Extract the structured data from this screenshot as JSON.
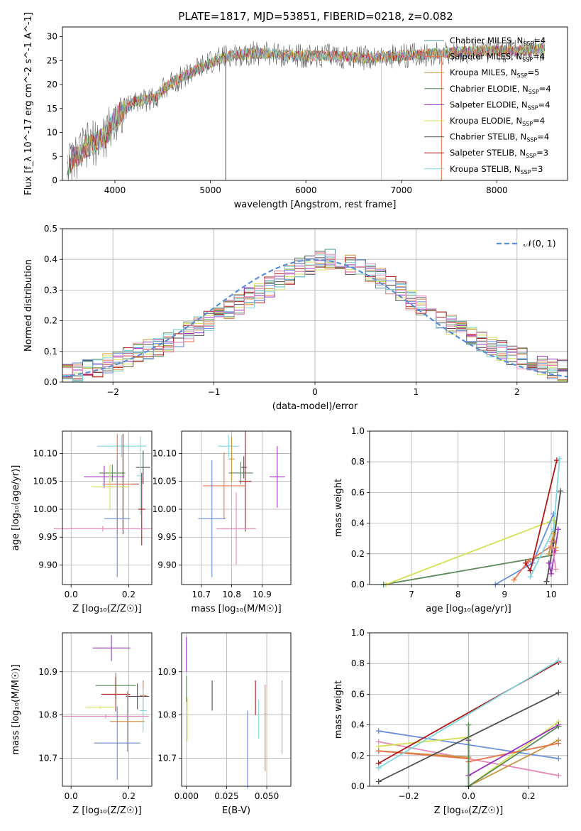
{
  "figure_title": "PLATE=1817, MJD=53851, FIBERID=0218, z=0.082",
  "colors": [
    "#4c8f8f",
    "#e8734a",
    "#c8963c",
    "#5a8a5a",
    "#9b30c0",
    "#d4e050",
    "#505050",
    "#b01818",
    "#7fd8e0",
    "#6a8fdc",
    "#e888b8"
  ],
  "chart_data": [
    {
      "id": "spectrum",
      "type": "line",
      "xlabel": "wavelength [Angstrom, rest frame]",
      "ylabel": "Flux [f_λ 10^-17 erg cm^-2 s^-1 A^-1]",
      "xlim": [
        3450,
        8740
      ],
      "ylim": [
        0,
        32
      ],
      "xticks": [
        "4000",
        "5000",
        "6000",
        "7000",
        "8000"
      ],
      "yticks": [
        "0",
        "5",
        "10",
        "15",
        "20",
        "25",
        "30"
      ],
      "grid": false,
      "legend_position": "top-right",
      "continuum": {
        "x": [
          3500,
          3700,
          3900,
          4000,
          4200,
          4400,
          4600,
          4800,
          5000,
          5200,
          5400,
          5600,
          5800,
          6000,
          6300,
          6600,
          7000,
          7400,
          7800,
          8200,
          8500
        ],
        "y": [
          3,
          7,
          9,
          13,
          16.5,
          17,
          20.5,
          22.5,
          24.5,
          26,
          26.5,
          26.5,
          26,
          26,
          26,
          25.5,
          26,
          26.5,
          27,
          27,
          27.5
        ]
      },
      "series": [
        {
          "name": "Chabrier MILES",
          "n_ssp": "4"
        },
        {
          "name": "Salpeter MILES",
          "n_ssp": "4"
        },
        {
          "name": "Kroupa MILES",
          "n_ssp": "5"
        },
        {
          "name": "Chabrier ELODIE",
          "n_ssp": "4"
        },
        {
          "name": "Salpeter ELODIE",
          "n_ssp": "4"
        },
        {
          "name": "Kroupa ELODIE",
          "n_ssp": "4"
        },
        {
          "name": "Chabrier STELIB",
          "n_ssp": "4"
        },
        {
          "name": "Salpeter STELIB",
          "n_ssp": "3"
        },
        {
          "name": "Kroupa STELIB",
          "n_ssp": "3"
        }
      ]
    },
    {
      "id": "residuals",
      "type": "bar",
      "xlabel": "(data-model)/error",
      "ylabel": "Normed distribution",
      "xlim": [
        -2.5,
        2.5
      ],
      "ylim": [
        0,
        0.5
      ],
      "xticks": [
        "−2",
        "−1",
        "0",
        "1",
        "2"
      ],
      "yticks": [
        "0.0",
        "0.1",
        "0.2",
        "0.3",
        "0.4",
        "0.5"
      ],
      "grid": true,
      "legend": "𝒩(0, 1)",
      "legend_position": "top-right",
      "bin_width": 0.1,
      "base_hist": [
        0.03,
        0.032,
        0.04,
        0.05,
        0.058,
        0.068,
        0.08,
        0.092,
        0.105,
        0.118,
        0.132,
        0.148,
        0.163,
        0.18,
        0.198,
        0.216,
        0.236,
        0.255,
        0.274,
        0.292,
        0.31,
        0.33,
        0.35,
        0.372,
        0.385,
        0.398,
        0.4,
        0.396,
        0.386,
        0.374,
        0.355,
        0.336,
        0.314,
        0.292,
        0.27,
        0.25,
        0.23,
        0.21,
        0.19,
        0.17,
        0.152,
        0.134,
        0.118,
        0.103,
        0.09,
        0.078,
        0.066,
        0.055,
        0.046,
        0.038
      ]
    },
    {
      "id": "age_vs_z",
      "type": "scatter",
      "xlabel": "Z [log₁₀(Z/Z☉)]",
      "ylabel": "age  [log₁₀(age/yr)]",
      "xlim": [
        -0.03,
        0.28
      ],
      "ylim": [
        9.865,
        10.14
      ],
      "xticks": [
        "0.0",
        "0.2"
      ],
      "xtick_values": [
        0,
        0.2
      ],
      "yticks": [
        "9.90",
        "9.95",
        "10.00",
        "10.05",
        "10.10"
      ],
      "ytick_values": [
        9.9,
        9.95,
        10.0,
        10.05,
        10.1
      ],
      "grid": true,
      "points": [
        {
          "x": 0.175,
          "y": 10.113,
          "xerr": 0.085,
          "yerr": 0.02,
          "color": 8
        },
        {
          "x": 0.143,
          "y": 10.065,
          "xerr": 0.045,
          "yerr": 0.015,
          "color": 3
        },
        {
          "x": 0.25,
          "y": 10.075,
          "xerr": 0.025,
          "yerr": 0.03,
          "color": 6
        },
        {
          "x": 0.115,
          "y": 10.058,
          "xerr": 0.07,
          "yerr": 0.02,
          "color": 4
        },
        {
          "x": 0.24,
          "y": 10.06,
          "xerr": 0.012,
          "yerr": 0.07,
          "color": 8
        },
        {
          "x": 0.18,
          "y": 10.045,
          "xerr": 0.055,
          "yerr": 0.09,
          "color": 7
        },
        {
          "x": 0.16,
          "y": 10.045,
          "xerr": 0.05,
          "yerr": 0.09,
          "color": 1
        },
        {
          "x": 0.135,
          "y": 10.04,
          "xerr": 0.065,
          "yerr": 0.04,
          "color": 5
        },
        {
          "x": 0.245,
          "y": 10.0,
          "xerr": 0.012,
          "yerr": 0.065,
          "color": 7
        },
        {
          "x": 0.16,
          "y": 9.983,
          "xerr": 0.045,
          "yerr": 0.105,
          "color": 9
        },
        {
          "x": 0.11,
          "y": 9.965,
          "xerr": 0.17,
          "yerr": 0.005,
          "color": 10
        }
      ]
    },
    {
      "id": "age_vs_mass",
      "type": "scatter",
      "xlabel": "mass [log₁₀(M/M☉)]",
      "ylabel": "",
      "xlim": [
        10.635,
        10.995
      ],
      "ylim": [
        9.865,
        10.14
      ],
      "xticks": [
        "10.7",
        "10.8",
        "10.9"
      ],
      "xtick_values": [
        10.7,
        10.8,
        10.9
      ],
      "yticks": [
        "9.90",
        "9.95",
        "10.00",
        "10.05",
        "10.10"
      ],
      "ytick_values": [
        9.9,
        9.95,
        10.0,
        10.05,
        10.1
      ],
      "grid": true,
      "points": [
        {
          "x": 10.79,
          "y": 10.113,
          "xerr": 0.035,
          "yerr": 0.02,
          "color": 8
        },
        {
          "x": 10.8,
          "y": 10.09,
          "xerr": 0.01,
          "yerr": 0.04,
          "color": 2
        },
        {
          "x": 10.84,
          "y": 10.075,
          "xerr": 0.01,
          "yerr": 0.02,
          "color": 6
        },
        {
          "x": 10.83,
          "y": 10.065,
          "xerr": 0.04,
          "yerr": 0.02,
          "color": 3
        },
        {
          "x": 10.95,
          "y": 10.058,
          "xerr": 0.025,
          "yerr": 0.055,
          "color": 4
        },
        {
          "x": 10.845,
          "y": 10.05,
          "xerr": 0.02,
          "yerr": 0.09,
          "color": 7
        },
        {
          "x": 10.775,
          "y": 10.042,
          "xerr": 0.07,
          "yerr": 0.06,
          "color": 1
        },
        {
          "x": 10.735,
          "y": 9.983,
          "xerr": 0.045,
          "yerr": 0.105,
          "color": 9
        },
        {
          "x": 10.815,
          "y": 9.965,
          "xerr": 0.065,
          "yerr": 0.065,
          "color": 10
        }
      ]
    },
    {
      "id": "weight_vs_age",
      "type": "line",
      "xlabel": "age  [log₁₀(age/yr)]",
      "ylabel": "mass weight",
      "xlim": [
        6.1,
        10.35
      ],
      "ylim": [
        0,
        1.0
      ],
      "xticks": [
        "7",
        "8",
        "9",
        "10"
      ],
      "xtick_values": [
        7,
        8,
        9,
        10
      ],
      "yticks": [
        "0.0",
        "0.2",
        "0.4",
        "0.6",
        "0.8",
        "1.0"
      ],
      "ytick_values": [
        0,
        0.2,
        0.4,
        0.6,
        0.8,
        1.0
      ],
      "grid": true,
      "series": [
        {
          "color": 3,
          "x": [
            6.4,
            10.0,
            10.1
          ],
          "y": [
            0.0,
            0.19,
            0.4
          ]
        },
        {
          "color": 5,
          "x": [
            6.45,
            10.05,
            10.1
          ],
          "y": [
            0.0,
            0.42,
            0.4
          ]
        },
        {
          "color": 9,
          "x": [
            8.8,
            9.6,
            10.05
          ],
          "y": [
            0.0,
            0.14,
            0.46
          ]
        },
        {
          "color": 1,
          "x": [
            9.2,
            9.5,
            10.0,
            10.1
          ],
          "y": [
            0.03,
            0.15,
            0.25,
            0.22
          ]
        },
        {
          "color": 7,
          "x": [
            9.45,
            9.55,
            10.12
          ],
          "y": [
            0.14,
            0.09,
            0.81
          ]
        },
        {
          "color": 8,
          "x": [
            9.55,
            10.05,
            10.18
          ],
          "y": [
            0.05,
            0.36,
            0.82
          ]
        },
        {
          "color": 6,
          "x": [
            9.9,
            10.05,
            10.2
          ],
          "y": [
            0.02,
            0.27,
            0.61
          ]
        },
        {
          "color": 4,
          "x": [
            9.95,
            10.0,
            10.15
          ],
          "y": [
            0.14,
            0.07,
            0.36
          ]
        },
        {
          "color": 10,
          "x": [
            10.0,
            10.05,
            10.1
          ],
          "y": [
            0.28,
            0.2,
            0.1
          ]
        },
        {
          "color": 2,
          "x": [
            9.95,
            10.05,
            10.1
          ],
          "y": [
            0.2,
            0.33,
            0.24
          ]
        }
      ]
    },
    {
      "id": "mass_vs_z",
      "type": "scatter",
      "xlabel": "Z [log₁₀(Z/Z☉)]",
      "ylabel": "mass [log₁₀(M/M☉)]",
      "xlim": [
        -0.03,
        0.28
      ],
      "ylim": [
        10.635,
        10.99
      ],
      "xticks": [
        "0.0",
        "0.2"
      ],
      "xtick_values": [
        0,
        0.2
      ],
      "yticks": [
        "10.7",
        "10.8",
        "10.9"
      ],
      "ytick_values": [
        10.7,
        10.8,
        10.9
      ],
      "grid": true,
      "points": [
        {
          "x": 0.14,
          "y": 10.955,
          "xerr": 0.065,
          "yerr": 0.03,
          "color": 4
        },
        {
          "x": 0.155,
          "y": 10.868,
          "xerr": 0.07,
          "yerr": 0.03,
          "color": 3
        },
        {
          "x": 0.25,
          "y": 10.845,
          "xerr": 0.012,
          "yerr": 0.035,
          "color": 1
        },
        {
          "x": 0.23,
          "y": 10.843,
          "xerr": 0.04,
          "yerr": 0.03,
          "color": 6
        },
        {
          "x": 0.155,
          "y": 10.848,
          "xerr": 0.05,
          "yerr": 0.04,
          "color": 7
        },
        {
          "x": 0.1,
          "y": 10.818,
          "xerr": 0.05,
          "yerr": 0.003,
          "color": 5
        },
        {
          "x": 0.25,
          "y": 10.81,
          "xerr": 0.012,
          "yerr": 0.05,
          "color": 8
        },
        {
          "x": 0.12,
          "y": 10.797,
          "xerr": 0.15,
          "yerr": 0.005,
          "color": 10
        },
        {
          "x": 0.195,
          "y": 10.785,
          "xerr": 0.06,
          "yerr": 0.07,
          "color": 2
        },
        {
          "x": 0.16,
          "y": 10.735,
          "xerr": 0.08,
          "yerr": 0.085,
          "color": 9
        }
      ]
    },
    {
      "id": "mass_vs_ebv",
      "type": "scatter",
      "xlabel": "E(B-V)",
      "ylabel": "",
      "xlim": [
        -0.003,
        0.065
      ],
      "ylim": [
        10.635,
        10.99
      ],
      "xticks": [
        "0.000",
        "0.025",
        "0.050"
      ],
      "xtick_values": [
        0,
        0.025,
        0.05
      ],
      "yticks": [
        "10.7",
        "10.8",
        "10.9"
      ],
      "ytick_values": [
        10.7,
        10.8,
        10.9
      ],
      "grid": true,
      "points": [
        {
          "x": 0.0,
          "y": 10.94,
          "xerr": 0,
          "yerr": 0.04,
          "color": 4
        },
        {
          "x": 0.0005,
          "y": 10.79,
          "xerr": 0,
          "yerr": 0.05,
          "color": 5
        },
        {
          "x": 0.0,
          "y": 10.86,
          "xerr": 0,
          "yerr": 0.03,
          "color": 3
        },
        {
          "x": 0.016,
          "y": 10.845,
          "xerr": 0,
          "yerr": 0.035,
          "color": 6
        },
        {
          "x": 0.038,
          "y": 10.72,
          "xerr": 0,
          "yerr": 0.09,
          "color": 9
        },
        {
          "x": 0.043,
          "y": 10.84,
          "xerr": 0,
          "yerr": 0.04,
          "color": 7
        },
        {
          "x": 0.045,
          "y": 10.79,
          "xerr": 0,
          "yerr": 0.045,
          "color": 8
        },
        {
          "x": 0.049,
          "y": 10.77,
          "xerr": 0,
          "yerr": 0.1,
          "color": 1
        },
        {
          "x": 0.0595,
          "y": 10.795,
          "xerr": 0,
          "yerr": 0.085,
          "color": 10
        }
      ]
    },
    {
      "id": "weight_vs_z",
      "type": "line",
      "xlabel": "Z [log₁₀(Z/Z☉)]",
      "ylabel": "mass weight",
      "xlim": [
        -0.33,
        0.33
      ],
      "ylim": [
        0,
        1.0
      ],
      "xticks": [
        "−0.2",
        "0.0",
        "0.2"
      ],
      "xtick_values": [
        -0.2,
        0,
        0.2
      ],
      "yticks": [
        "0.0",
        "0.2",
        "0.4",
        "0.6",
        "0.8",
        "1.0"
      ],
      "ytick_values": [
        0,
        0.2,
        0.4,
        0.6,
        0.8,
        1.0
      ],
      "grid": true,
      "series": [
        {
          "color": 9,
          "x": [
            -0.3,
            0.3
          ],
          "y": [
            0.36,
            0.18
          ]
        },
        {
          "color": 10,
          "x": [
            -0.3,
            0.3
          ],
          "y": [
            0.29,
            0.07
          ]
        },
        {
          "color": 5,
          "x": [
            -0.3,
            0.0,
            0.0,
            0.3
          ],
          "y": [
            0.26,
            0.32,
            0.0,
            0.42
          ]
        },
        {
          "color": 2,
          "x": [
            -0.3,
            0.0,
            0.0,
            0.3
          ],
          "y": [
            0.23,
            0.19,
            0.0,
            0.3
          ]
        },
        {
          "color": 1,
          "x": [
            -0.3,
            0.0,
            0.0,
            0.3
          ],
          "y": [
            0.23,
            0.18,
            0.16,
            0.28
          ]
        },
        {
          "color": 7,
          "x": [
            -0.3,
            0.3
          ],
          "y": [
            0.15,
            0.81
          ]
        },
        {
          "color": 8,
          "x": [
            -0.3,
            0.3
          ],
          "y": [
            0.12,
            0.82
          ]
        },
        {
          "color": 6,
          "x": [
            -0.3,
            0.3
          ],
          "y": [
            0.03,
            0.61
          ]
        },
        {
          "color": 4,
          "x": [
            0.0,
            0.0,
            0.3
          ],
          "y": [
            0.3,
            0.07,
            0.4
          ]
        },
        {
          "color": 3,
          "x": [
            0.0,
            0.0,
            0.3
          ],
          "y": [
            0.4,
            0.0,
            0.39
          ]
        }
      ]
    }
  ]
}
